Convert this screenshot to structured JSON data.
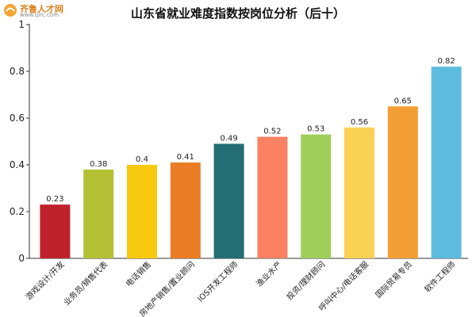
{
  "logo": {
    "brand_text": "齐鲁人才网",
    "url_text": "www.qlrc.com"
  },
  "chart_data": {
    "type": "bar",
    "title": "山东省就业难度指数按岗位分析（后十）",
    "xlabel": "",
    "ylabel": "",
    "ylim": [
      0,
      1
    ],
    "yticks": [
      "0",
      "0.2",
      "0.4",
      "0.6",
      "0.8",
      "1"
    ],
    "grid": false,
    "categories": [
      "游戏设计/开发",
      "业务员/销售代表",
      "电话销售",
      "房地产销售/置业顾问",
      "IOS开发工程师",
      "渔业水产",
      "投资/理财顾问",
      "呼叫中心/电话客服",
      "国际贸易专员",
      "软件工程师"
    ],
    "values": [
      0.23,
      0.38,
      0.4,
      0.41,
      0.49,
      0.52,
      0.53,
      0.56,
      0.65,
      0.82
    ],
    "value_labels": [
      "0.23",
      "0.38",
      "0.4",
      "0.41",
      "0.49",
      "0.52",
      "0.53",
      "0.56",
      "0.65",
      "0.82"
    ],
    "colors": [
      "#c0222c",
      "#b5c134",
      "#f6c90e",
      "#e97c24",
      "#236e74",
      "#fb8163",
      "#9fce5b",
      "#f8d155",
      "#f39f35",
      "#5dbcdf"
    ]
  }
}
